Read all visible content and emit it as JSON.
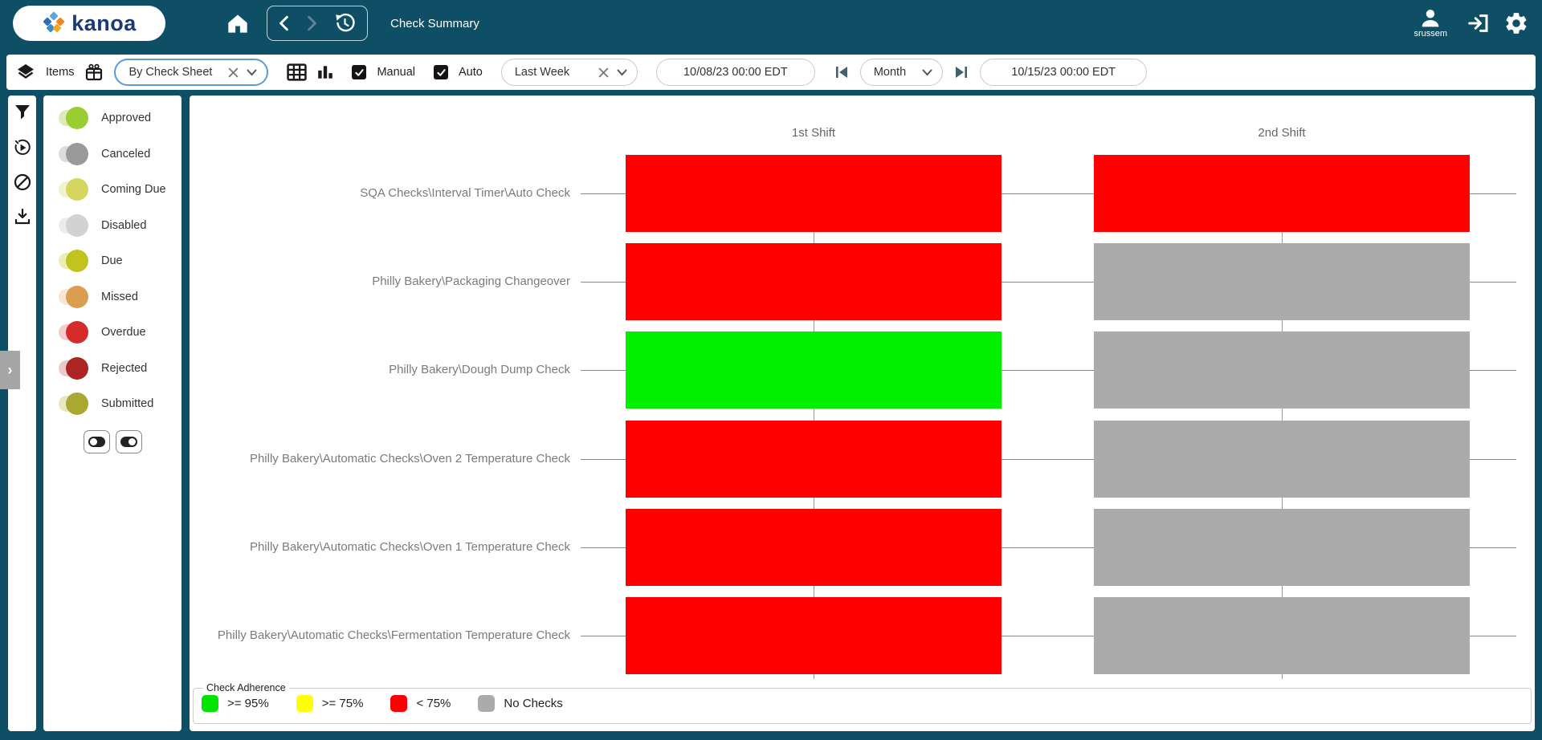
{
  "nav": {
    "logo_text": "kanoa",
    "title": "Check Summary",
    "username": "srussem"
  },
  "toolbar": {
    "items_label": "Items",
    "sheet_select_value": "By Check Sheet",
    "manual_label": "Manual",
    "manual_checked": true,
    "auto_label": "Auto",
    "auto_checked": true,
    "range_select_value": "Last Week",
    "start_date": "10/08/23 00:00 EDT",
    "interval_select_value": "Month",
    "end_date": "10/15/23 00:00 EDT"
  },
  "status_legend": {
    "items": [
      {
        "label": "Approved",
        "color": "#9acd32",
        "track": "#dcebbc",
        "on": true
      },
      {
        "label": "Canceled",
        "color": "#9a9a9a",
        "track": "#dcdcdc",
        "on": true
      },
      {
        "label": "Coming Due",
        "color": "#d6d65e",
        "track": "#f2f2cf",
        "on": true
      },
      {
        "label": "Disabled",
        "color": "#d2d2d2",
        "track": "#ececec",
        "on": true
      },
      {
        "label": "Due",
        "color": "#c3c31e",
        "track": "#ededba",
        "on": true
      },
      {
        "label": "Missed",
        "color": "#dd9d50",
        "track": "#f6e6d2",
        "on": true
      },
      {
        "label": "Overdue",
        "color": "#d52b2b",
        "track": "#f3cdcd",
        "on": true
      },
      {
        "label": "Rejected",
        "color": "#ad2424",
        "track": "#eac9c9",
        "on": true
      },
      {
        "label": "Submitted",
        "color": "#a8a832",
        "track": "#e7e7c2",
        "on": true
      }
    ]
  },
  "chart_data": {
    "type": "heatmap",
    "title": "",
    "columns": [
      "1st Shift",
      "2nd Shift"
    ],
    "rows": [
      {
        "label": "SQA Checks\\Interval Timer\\Auto Check",
        "values": [
          "< 75%",
          "< 75%"
        ],
        "colors": [
          "#ff0000",
          "#ff0000"
        ]
      },
      {
        "label": "Philly Bakery\\Packaging Changeover",
        "values": [
          "< 75%",
          "No Checks"
        ],
        "colors": [
          "#ff0000",
          "#ababab"
        ]
      },
      {
        "label": "Philly Bakery\\Dough Dump Check",
        "values": [
          ">= 95%",
          "No Checks"
        ],
        "colors": [
          "#00f000",
          "#ababab"
        ]
      },
      {
        "label": "Philly Bakery\\Automatic Checks\\Oven 2 Temperature Check",
        "values": [
          "< 75%",
          "No Checks"
        ],
        "colors": [
          "#ff0000",
          "#ababab"
        ]
      },
      {
        "label": "Philly Bakery\\Automatic Checks\\Oven 1 Temperature Check",
        "values": [
          "< 75%",
          "No Checks"
        ],
        "colors": [
          "#ff0000",
          "#ababab"
        ]
      },
      {
        "label": "Philly Bakery\\Automatic Checks\\Fermentation Temperature Check",
        "values": [
          "< 75%",
          "No Checks"
        ],
        "colors": [
          "#ff0000",
          "#ababab"
        ]
      }
    ],
    "legend": {
      "title": "Check Adherence",
      "items": [
        {
          "label": ">= 95%",
          "color": "#00e400"
        },
        {
          "label": ">= 75%",
          "color": "#ffff00"
        },
        {
          "label": "< 75%",
          "color": "#ff0000"
        },
        {
          "label": "No Checks",
          "color": "#ababab"
        }
      ]
    },
    "layout": {
      "legend_position": "bottom",
      "grid": true
    }
  },
  "ui_colors": {
    "navbar_bg": "#0f4f66",
    "card_bg": "#ffffff",
    "accent_border": "#5b9bd5"
  }
}
